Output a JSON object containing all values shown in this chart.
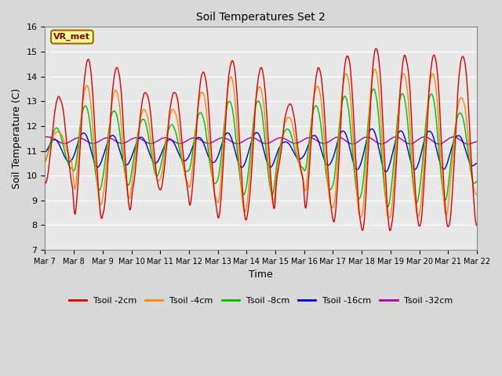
{
  "title": "Soil Temperatures Set 2",
  "xlabel": "Time",
  "ylabel": "Soil Temperature (C)",
  "ylim": [
    7.0,
    16.0
  ],
  "yticks": [
    7.0,
    8.0,
    9.0,
    10.0,
    11.0,
    12.0,
    13.0,
    14.0,
    15.0,
    16.0
  ],
  "xtick_labels": [
    "Mar 7",
    "Mar 8",
    "Mar 9",
    "Mar 10",
    "Mar 11",
    "Mar 12",
    "Mar 13",
    "Mar 14",
    "Mar 15",
    "Mar 16",
    "Mar 17",
    "Mar 18",
    "Mar 19",
    "Mar 20",
    "Mar 21",
    "Mar 22"
  ],
  "annotation": "VR_met",
  "colors": {
    "2cm": "#dd0000",
    "4cm": "#ff8800",
    "8cm": "#00bb00",
    "16cm": "#0000cc",
    "32cm": "#aa00aa"
  },
  "legend_labels": [
    "Tsoil -2cm",
    "Tsoil -4cm",
    "Tsoil -8cm",
    "Tsoil -16cm",
    "Tsoil -32cm"
  ],
  "fig_facecolor": "#d8d8d8",
  "ax_facecolor": "#e8e8e8"
}
